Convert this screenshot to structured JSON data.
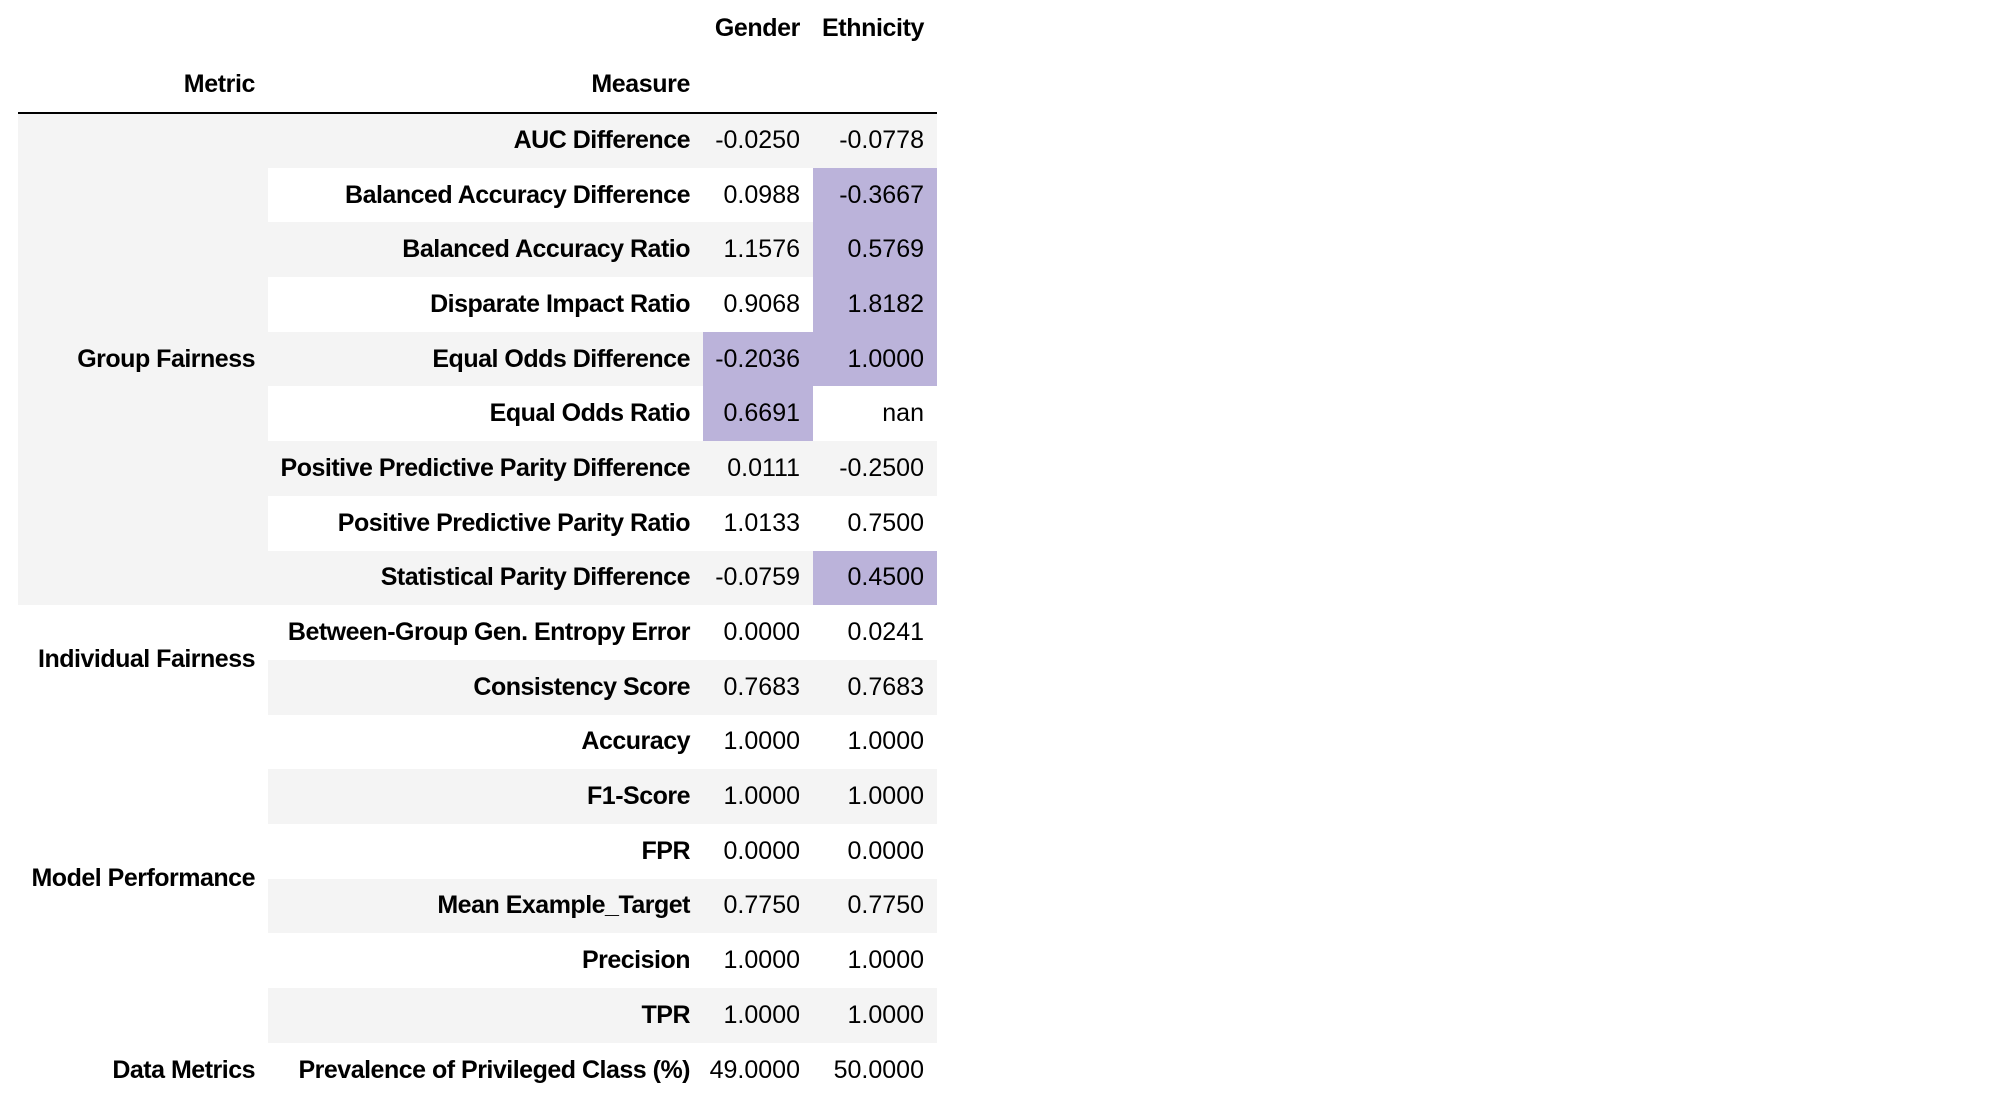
{
  "chart_data": {
    "type": "table",
    "columns": [
      "Gender",
      "Ethnicity"
    ],
    "index_names": [
      "Metric",
      "Measure"
    ],
    "groups": [
      {
        "metric": "Group Fairness",
        "shaded": true,
        "rows": [
          {
            "measure": "AUC Difference",
            "gender": "-0.0250",
            "ethnicity": "-0.0778",
            "highlight": []
          },
          {
            "measure": "Balanced Accuracy Difference",
            "gender": "0.0988",
            "ethnicity": "-0.3667",
            "highlight": [
              "ethnicity"
            ]
          },
          {
            "measure": "Balanced Accuracy Ratio",
            "gender": "1.1576",
            "ethnicity": "0.5769",
            "highlight": [
              "ethnicity"
            ]
          },
          {
            "measure": "Disparate Impact Ratio",
            "gender": "0.9068",
            "ethnicity": "1.8182",
            "highlight": [
              "ethnicity"
            ]
          },
          {
            "measure": "Equal Odds Difference",
            "gender": "-0.2036",
            "ethnicity": "1.0000",
            "highlight": [
              "gender",
              "ethnicity"
            ]
          },
          {
            "measure": "Equal Odds Ratio",
            "gender": "0.6691",
            "ethnicity": "nan",
            "highlight": [
              "gender"
            ]
          },
          {
            "measure": "Positive Predictive Parity Difference",
            "gender": "0.0111",
            "ethnicity": "-0.2500",
            "highlight": []
          },
          {
            "measure": "Positive Predictive Parity Ratio",
            "gender": "1.0133",
            "ethnicity": "0.7500",
            "highlight": []
          },
          {
            "measure": "Statistical Parity Difference",
            "gender": "-0.0759",
            "ethnicity": "0.4500",
            "highlight": [
              "ethnicity"
            ]
          }
        ]
      },
      {
        "metric": "Individual Fairness",
        "shaded": false,
        "rows": [
          {
            "measure": "Between-Group Gen. Entropy Error",
            "gender": "0.0000",
            "ethnicity": "0.0241",
            "highlight": []
          },
          {
            "measure": "Consistency Score",
            "gender": "0.7683",
            "ethnicity": "0.7683",
            "highlight": []
          }
        ]
      },
      {
        "metric": "Model Performance",
        "shaded": false,
        "rows": [
          {
            "measure": "Accuracy",
            "gender": "1.0000",
            "ethnicity": "1.0000",
            "highlight": []
          },
          {
            "measure": "F1-Score",
            "gender": "1.0000",
            "ethnicity": "1.0000",
            "highlight": []
          },
          {
            "measure": "FPR",
            "gender": "0.0000",
            "ethnicity": "0.0000",
            "highlight": []
          },
          {
            "measure": "Mean Example_Target",
            "gender": "0.7750",
            "ethnicity": "0.7750",
            "highlight": []
          },
          {
            "measure": "Precision",
            "gender": "1.0000",
            "ethnicity": "1.0000",
            "highlight": []
          },
          {
            "measure": "TPR",
            "gender": "1.0000",
            "ethnicity": "1.0000",
            "highlight": []
          }
        ]
      },
      {
        "metric": "Data Metrics",
        "shaded": false,
        "rows": [
          {
            "measure": "Prevalence of Privileged Class (%)",
            "gender": "49.0000",
            "ethnicity": "50.0000",
            "highlight": []
          }
        ]
      }
    ]
  },
  "colors": {
    "row_stripe": "#f4f4f4",
    "highlight": "#bbb3da",
    "header_border": "#000000",
    "text": "#000000",
    "background": "#ffffff"
  }
}
